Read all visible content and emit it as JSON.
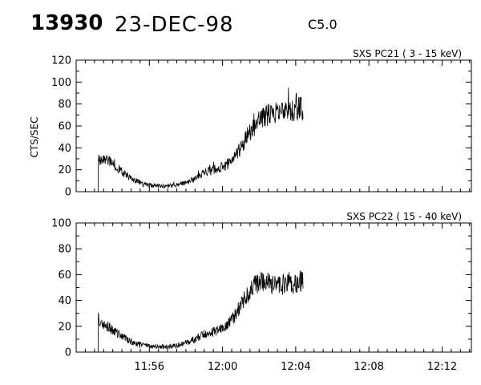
{
  "header": {
    "event_id": "13930",
    "date": "23-DEC-98",
    "flare_class": "C5.0"
  },
  "chart_data": [
    {
      "type": "line",
      "title": "SXS PC21  (  3 - 15 keV)",
      "ylabel": "CTS/SEC",
      "xlabel": "",
      "xlim": [
        "11:52:00",
        "12:13:36"
      ],
      "ylim": [
        0,
        120
      ],
      "yticks": [
        0,
        20,
        40,
        60,
        80,
        100,
        120
      ],
      "xtick_labels": [
        "11:56",
        "12:00",
        "12:04",
        "12:08",
        "12:12"
      ],
      "grid": false,
      "series": [
        {
          "x": [
            "11:53:12",
            "11:53:30",
            "11:54:00",
            "11:54:30",
            "11:55:00",
            "11:55:30",
            "11:56:00",
            "11:56:30",
            "11:57:00",
            "11:57:30",
            "11:58:00",
            "11:58:30",
            "11:59:00",
            "11:59:30",
            "12:00:00",
            "12:00:30",
            "12:01:00",
            "12:01:30",
            "12:02:00",
            "12:02:30",
            "12:03:00",
            "12:03:30",
            "12:04:00",
            "12:04:24"
          ],
          "y": [
            28,
            32,
            25,
            18,
            12,
            8,
            6,
            5,
            5,
            6,
            8,
            12,
            17,
            20,
            22,
            28,
            40,
            55,
            65,
            70,
            72,
            74,
            75,
            76
          ]
        }
      ]
    },
    {
      "type": "line",
      "title": "SXS PC22  ( 15 - 40 keV)",
      "ylabel": "",
      "xlabel": "",
      "xlim": [
        "11:52:00",
        "12:13:36"
      ],
      "ylim": [
        0,
        100
      ],
      "yticks": [
        0,
        20,
        40,
        60,
        80,
        100
      ],
      "xtick_labels": [
        "11:56",
        "12:00",
        "12:04",
        "12:08",
        "12:12"
      ],
      "grid": false,
      "series": [
        {
          "x": [
            "11:53:12",
            "11:53:30",
            "11:54:00",
            "11:54:30",
            "11:55:00",
            "11:55:30",
            "11:56:00",
            "11:56:30",
            "11:57:00",
            "11:57:30",
            "11:58:00",
            "11:58:30",
            "11:59:00",
            "11:59:30",
            "12:00:00",
            "12:00:30",
            "12:01:00",
            "12:01:30",
            "12:02:00",
            "12:02:30",
            "12:03:00",
            "12:03:30",
            "12:04:00",
            "12:04:24"
          ],
          "y": [
            26,
            22,
            17,
            12,
            8,
            6,
            5,
            4,
            4,
            5,
            7,
            10,
            14,
            16,
            18,
            24,
            36,
            48,
            55,
            54,
            53,
            52,
            53,
            56
          ]
        }
      ]
    }
  ]
}
